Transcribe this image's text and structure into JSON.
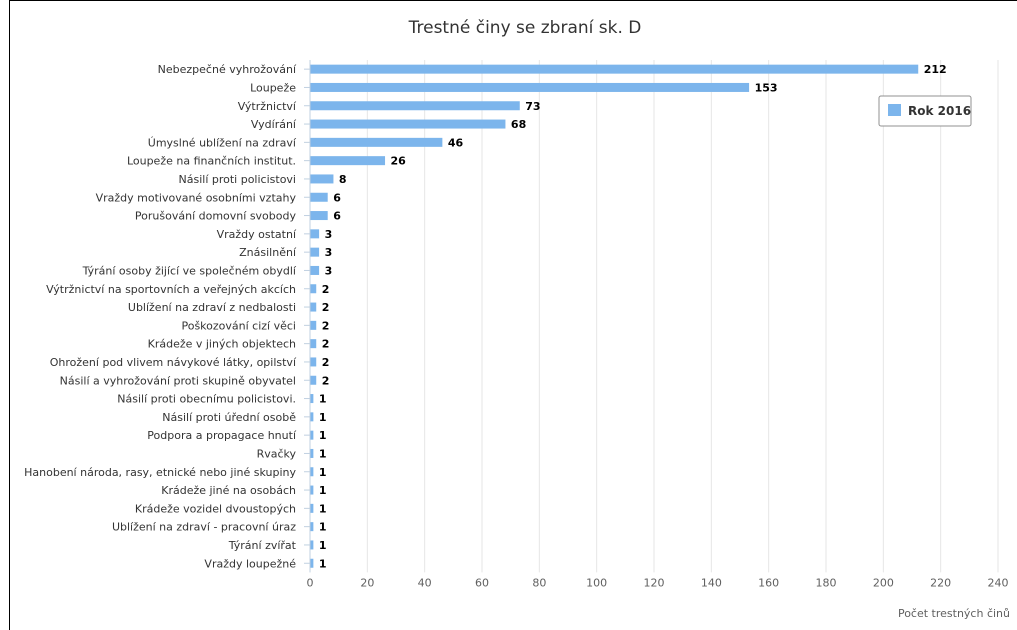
{
  "chart_data": {
    "type": "bar",
    "orientation": "horizontal",
    "title": "Trestné činy se zbraní sk. D",
    "xlabel": "Počet trestných činů",
    "ylabel": "",
    "xlim": [
      0,
      240
    ],
    "x_ticks": [
      0,
      20,
      40,
      60,
      80,
      100,
      120,
      140,
      160,
      180,
      200,
      220,
      240
    ],
    "grid": true,
    "legend_position": "top-right",
    "color": "#7cb5ec",
    "categories": [
      "Nebezpečné vyhrožování",
      "Loupeže",
      "Výtržnictví",
      "Vydírání",
      "Úmyslné ublížení na zdraví",
      "Loupeže na finančních institut.",
      "Násilí proti policistovi",
      "Vraždy motivované osobními vztahy",
      "Porušování domovní svobody",
      "Vraždy ostatní",
      "Znásilnění",
      "Týrání osoby žijící ve společném obydlí",
      "Výtržnictví na sportovních a veřejných akcích",
      "Ublížení na zdraví z nedbalosti",
      "Poškozování cizí věci",
      "Krádeže v jiných objektech",
      "Ohrožení pod vlivem návykové látky, opilství",
      "Násilí a vyhrožování proti skupině obyvatel",
      "Násilí proti obecnímu policistovi.",
      "Násilí proti úřední osobě",
      "Podpora a propagace hnutí",
      "Rvačky",
      "Hanobení národa, rasy, etnické nebo jiné skupiny",
      "Krádeže jiné na osobách",
      "Krádeže vozidel dvoustopých",
      "Ublížení na zdraví - pracovní úraz",
      "Týrání zvířat",
      "Vraždy loupežné"
    ],
    "series": [
      {
        "name": "Rok 2016",
        "values": [
          212,
          153,
          73,
          68,
          46,
          26,
          8,
          6,
          6,
          3,
          3,
          3,
          2,
          2,
          2,
          2,
          2,
          2,
          1,
          1,
          1,
          1,
          1,
          1,
          1,
          1,
          1,
          1
        ]
      }
    ]
  }
}
